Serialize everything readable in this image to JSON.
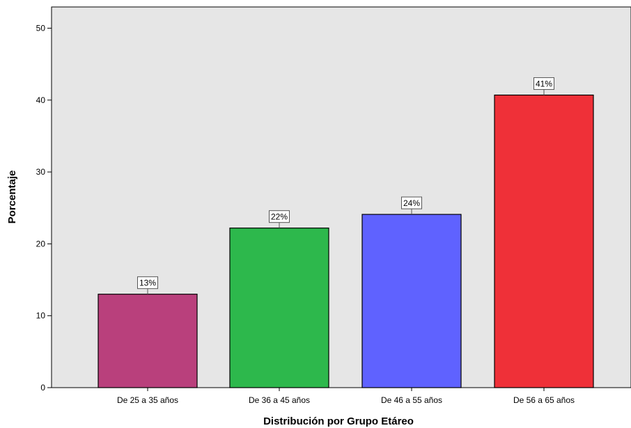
{
  "chart_data": {
    "type": "bar",
    "title": "",
    "xlabel": "Distribución por Grupo Etáreo",
    "ylabel": "Porcentaje",
    "categories": [
      "De 25 a 35 años",
      "De 36 a 45 años",
      "De 46 a 55 años",
      "De 56 a 65 años"
    ],
    "values": [
      13,
      22.2,
      24.1,
      40.7
    ],
    "data_labels": [
      "13%",
      "22%",
      "24%",
      "41%"
    ],
    "colors": [
      "#b9407c",
      "#2db84c",
      "#5f62ff",
      "#ef3038"
    ],
    "ylim": [
      0,
      54
    ],
    "yticks": [
      0,
      10,
      20,
      30,
      40,
      50
    ],
    "ytick_labels": [
      "0",
      "10",
      "20",
      "30",
      "40",
      "50"
    ],
    "grid": false,
    "plot_background": "#e6e6e6"
  }
}
